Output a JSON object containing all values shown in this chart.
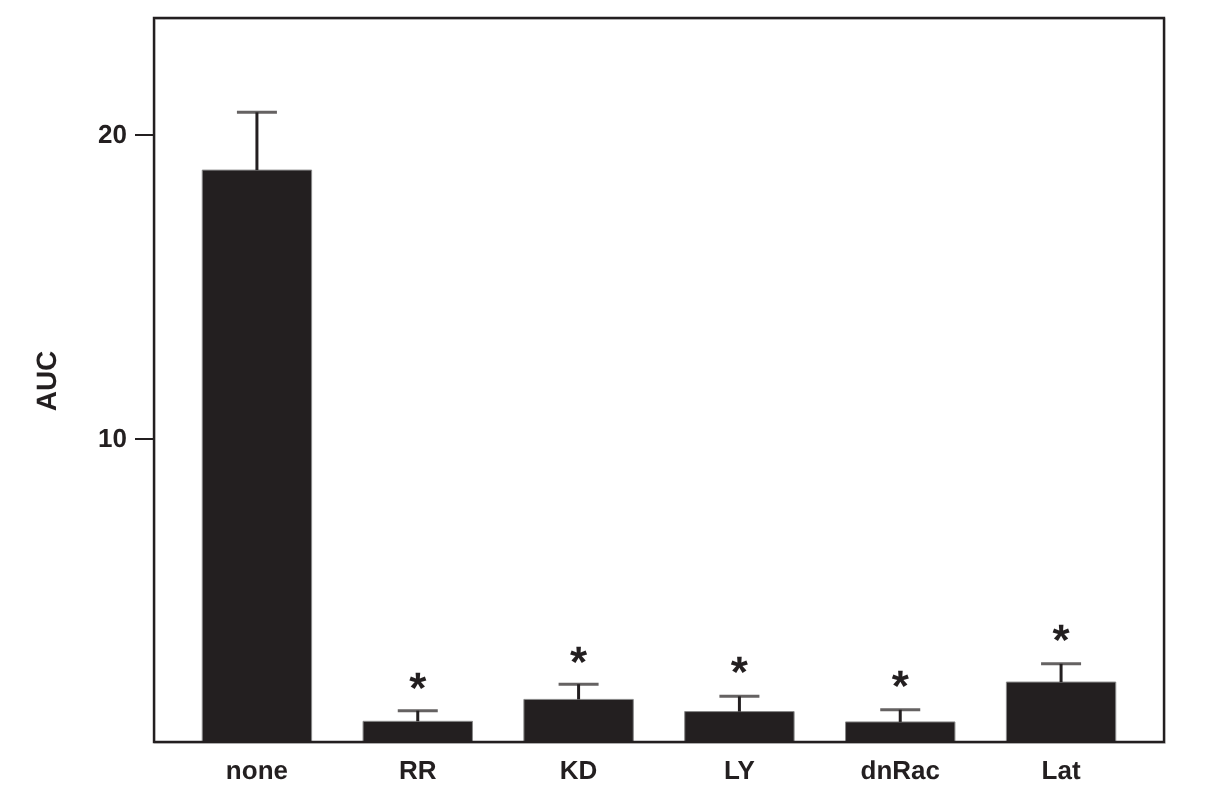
{
  "chart_data": {
    "type": "bar",
    "ylabel": "AUC",
    "categories": [
      "none",
      "RR",
      "KD",
      "LY",
      "dnRac",
      "Lat"
    ],
    "values": [
      18.8,
      0.68,
      1.4,
      1.0,
      0.66,
      1.97
    ],
    "errors": [
      1.9,
      0.35,
      0.5,
      0.5,
      0.4,
      0.6
    ],
    "color": "#231f20",
    "ylim": [
      0,
      23.8
    ],
    "yticks": [
      10,
      20
    ],
    "grid": false,
    "annotations": [
      {
        "text": "*",
        "x": "RR",
        "y": 1.03
      },
      {
        "text": "*",
        "x": "KD",
        "y": 1.88
      },
      {
        "text": "*",
        "x": "LY",
        "y": 1.53
      },
      {
        "text": "*",
        "x": "dnRac",
        "y": 1.07
      },
      {
        "text": "*",
        "x": "Lat",
        "y": 2.59
      }
    ]
  }
}
